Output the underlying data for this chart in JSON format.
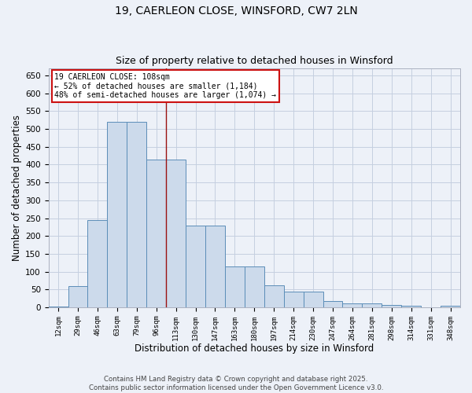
{
  "title1": "19, CAERLEON CLOSE, WINSFORD, CW7 2LN",
  "title2": "Size of property relative to detached houses in Winsford",
  "xlabel": "Distribution of detached houses by size in Winsford",
  "ylabel": "Number of detached properties",
  "footer": "Contains HM Land Registry data © Crown copyright and database right 2025.\nContains public sector information licensed under the Open Government Licence v3.0.",
  "categories": [
    "12sqm",
    "29sqm",
    "46sqm",
    "63sqm",
    "79sqm",
    "96sqm",
    "113sqm",
    "130sqm",
    "147sqm",
    "163sqm",
    "180sqm",
    "197sqm",
    "214sqm",
    "230sqm",
    "247sqm",
    "264sqm",
    "281sqm",
    "298sqm",
    "314sqm",
    "331sqm",
    "348sqm"
  ],
  "bar_heights": [
    2,
    60,
    245,
    520,
    520,
    415,
    415,
    228,
    228,
    115,
    115,
    62,
    44,
    44,
    18,
    10,
    10,
    7,
    5,
    0,
    5
  ],
  "bar_color": "#ccdaeb",
  "bar_edge_color": "#5b8db8",
  "grid_color": "#c5cfe0",
  "background_color": "#edf1f8",
  "vline_x": 6,
  "vline_color": "#9a1111",
  "annotation_text": "19 CAERLEON CLOSE: 108sqm\n← 52% of detached houses are smaller (1,184)\n48% of semi-detached houses are larger (1,074) →",
  "annotation_box_color": "#ffffff",
  "annotation_box_edge": "#cc1111",
  "ylim": [
    0,
    670
  ],
  "yticks": [
    0,
    50,
    100,
    150,
    200,
    250,
    300,
    350,
    400,
    450,
    500,
    550,
    600,
    650
  ]
}
